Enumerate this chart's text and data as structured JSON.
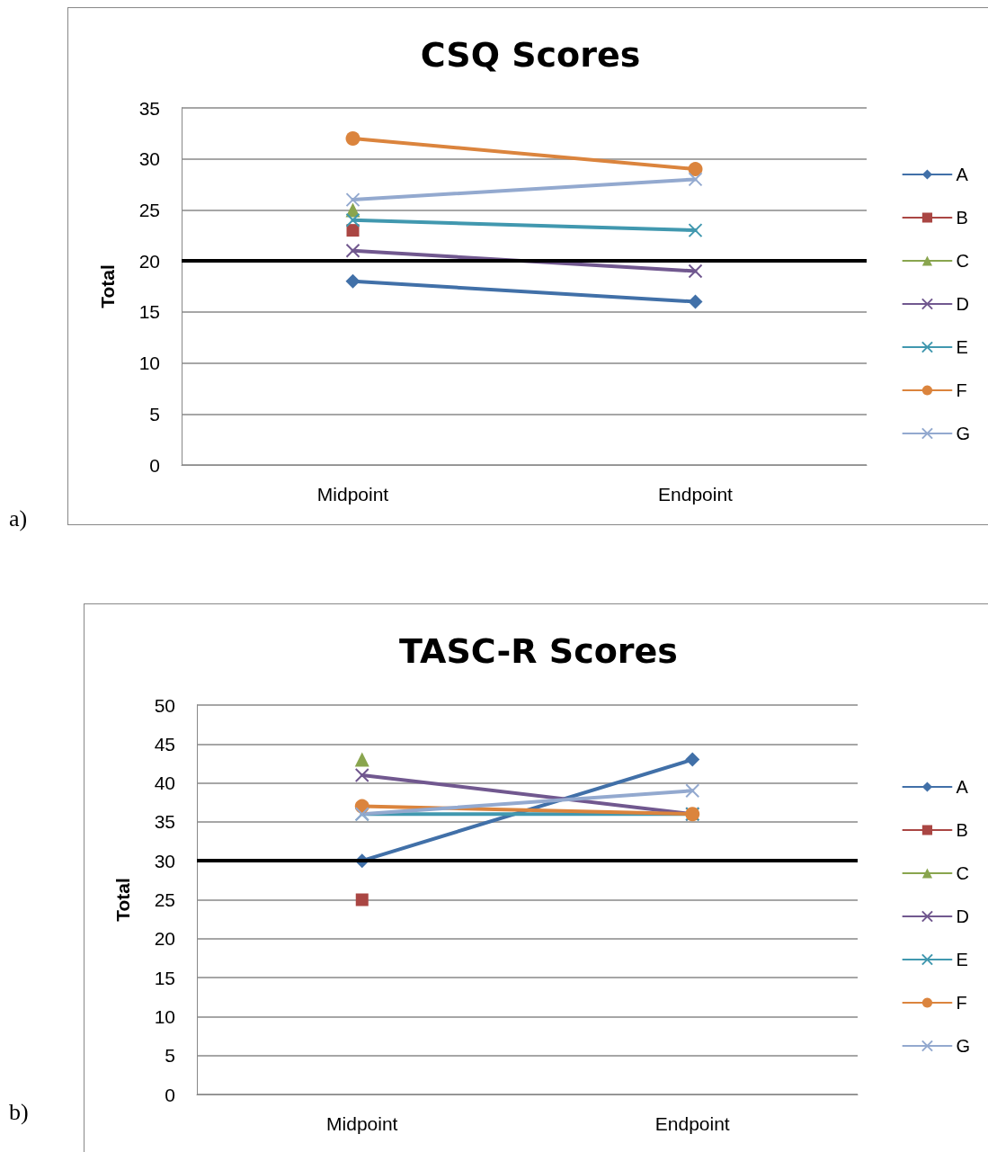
{
  "chart_data": [
    {
      "type": "line",
      "title": "CSQ Scores",
      "ylabel": "Total",
      "categories": [
        "Midpoint",
        "Endpoint"
      ],
      "ylim": [
        0,
        35
      ],
      "yticks": [
        0,
        5,
        10,
        15,
        20,
        25,
        30,
        35
      ],
      "grid": "y",
      "legend": "right",
      "line_style": "solid",
      "series": [
        {
          "name": "A",
          "color": "#4170a8",
          "marker": "diamond",
          "values": [
            18,
            16
          ]
        },
        {
          "name": "B",
          "color": "#aa4643",
          "marker": "square",
          "values": [
            23,
            null
          ]
        },
        {
          "name": "C",
          "color": "#89a54e",
          "marker": "triangle",
          "values": [
            25,
            null
          ]
        },
        {
          "name": "D",
          "color": "#71588f",
          "marker": "cross",
          "values": [
            21,
            19
          ]
        },
        {
          "name": "E",
          "color": "#4198af",
          "marker": "cross",
          "values": [
            24,
            23
          ]
        },
        {
          "name": "F",
          "color": "#db843d",
          "marker": "circle",
          "values": [
            32,
            29
          ]
        },
        {
          "name": "G",
          "color": "#93a9cf",
          "marker": "cross",
          "values": [
            26,
            28
          ]
        }
      ],
      "ref_lines": [
        {
          "axis": "y",
          "value": 20,
          "color": "#000000"
        }
      ],
      "annotations": [
        "a)"
      ]
    },
    {
      "type": "line",
      "title": "TASC-R Scores",
      "ylabel": "Total",
      "categories": [
        "Midpoint",
        "Endpoint"
      ],
      "ylim": [
        0,
        50
      ],
      "yticks": [
        0,
        5,
        10,
        15,
        20,
        25,
        30,
        35,
        40,
        45,
        50
      ],
      "grid": "y",
      "legend": "right",
      "line_style": "solid",
      "series": [
        {
          "name": "A",
          "color": "#4170a8",
          "marker": "diamond",
          "values": [
            30,
            43
          ]
        },
        {
          "name": "B",
          "color": "#aa4643",
          "marker": "square",
          "values": [
            25,
            null
          ]
        },
        {
          "name": "C",
          "color": "#89a54e",
          "marker": "triangle",
          "values": [
            43,
            null
          ]
        },
        {
          "name": "D",
          "color": "#71588f",
          "marker": "cross",
          "values": [
            41,
            36
          ]
        },
        {
          "name": "E",
          "color": "#4198af",
          "marker": "cross",
          "values": [
            36,
            36
          ]
        },
        {
          "name": "F",
          "color": "#db843d",
          "marker": "circle",
          "values": [
            37,
            36
          ]
        },
        {
          "name": "G",
          "color": "#93a9cf",
          "marker": "cross",
          "values": [
            36,
            39
          ]
        }
      ],
      "ref_lines": [
        {
          "axis": "y",
          "value": 30,
          "color": "#000000"
        }
      ],
      "annotations": [
        "b)"
      ]
    }
  ]
}
